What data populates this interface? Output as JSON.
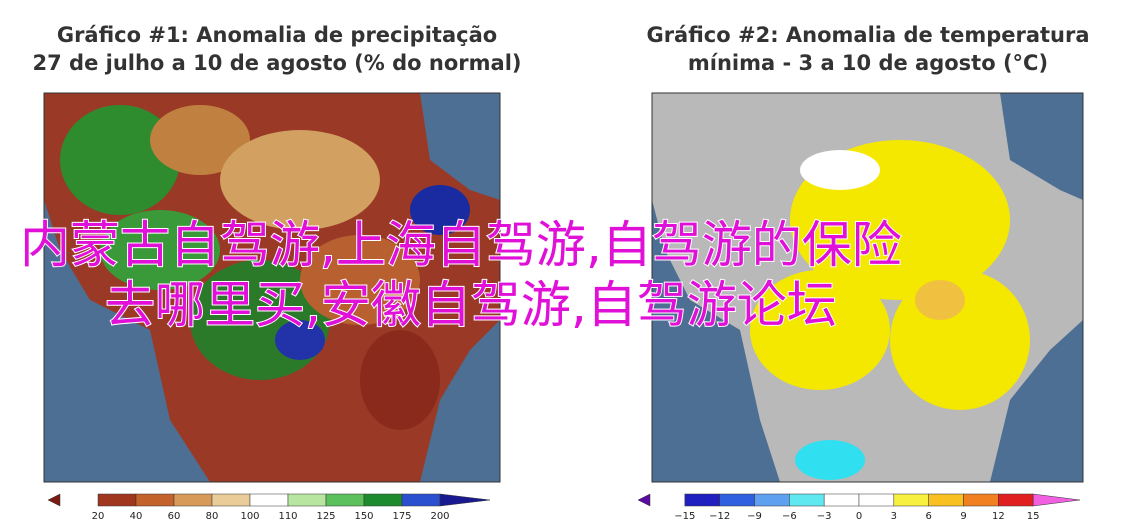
{
  "panels": [
    {
      "title_lines": [
        "Gráfico #1: Anomalia de precipitação",
        "27 de julho a 10 de agosto (% do normal)"
      ],
      "colorbar_labels": [
        "20",
        "40",
        "60",
        "80",
        "100",
        "110",
        "125",
        "150",
        "175",
        "200"
      ]
    },
    {
      "title_lines": [
        "Gráfico #2: Anomalia de temperatura",
        "mínima - 3 a 10 de agosto (°C)"
      ],
      "colorbar_labels": [
        "−15",
        "−12",
        "−9",
        "−6",
        "−3",
        "0",
        "3",
        "6",
        "9",
        "12",
        "15"
      ]
    }
  ],
  "overlay": {
    "lines": [
      "内蒙古自驾游,上海自驾游,自驾游的保险",
      "去哪里买,安徽自驾游,自驾游论坛"
    ]
  }
}
